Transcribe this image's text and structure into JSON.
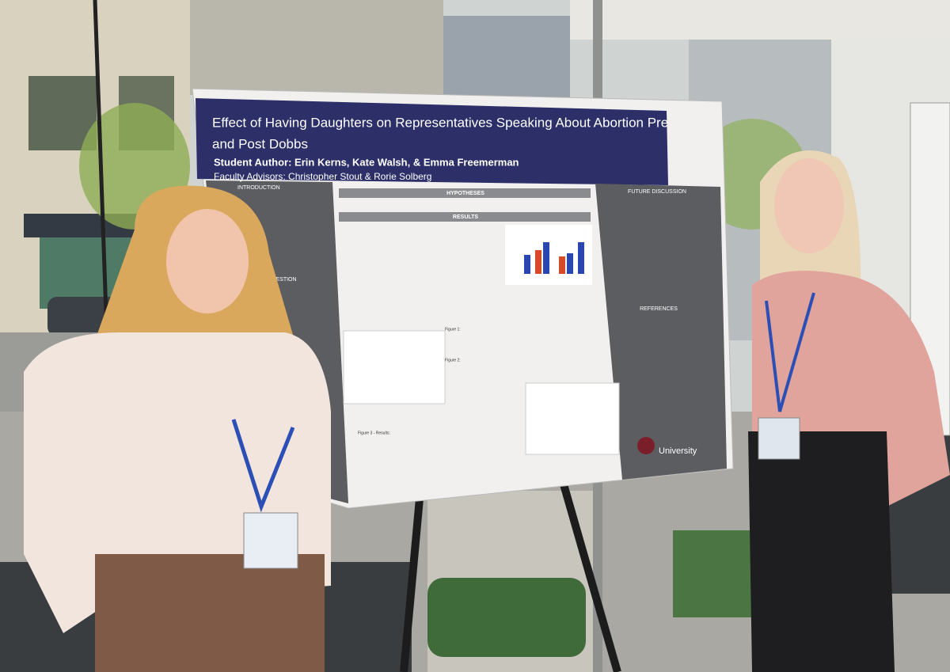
{
  "poster": {
    "title_lines": [
      "Effect of Having Daughters on Representatives Speaking About Abortion Pre",
      "and Post Dobbs"
    ],
    "authors": "Student Author: Erin Kerns, Kate Walsh, & Emma Freemerman",
    "advisors": "Faculty Advisors: Christopher Stout & Rorie Solberg",
    "sections": {
      "introduction": "INTRODUCTION",
      "question": "QUESTION",
      "hypotheses": "HYPOTHESES",
      "results": "RESULTS",
      "future_discussion": "FUTURE DISCUSSION",
      "references": "REFERENCES"
    },
    "figure_labels": [
      "Figure 1:",
      "Figure 2:",
      "Figure 3 - Results:"
    ],
    "logo": "University"
  }
}
